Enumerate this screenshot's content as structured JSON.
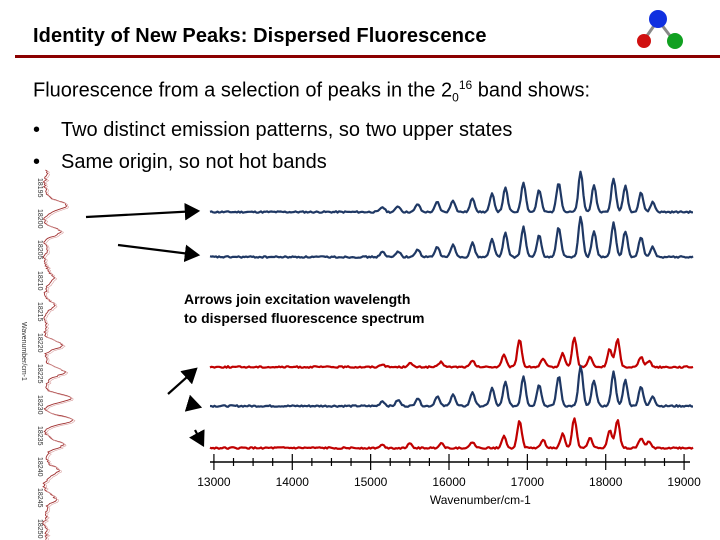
{
  "slide": {
    "title": "Identity of New Peaks: Dispersed Fluorescence",
    "intro_pre": "Fluorescence from a selection of peaks in the 2",
    "intro_sub": "0",
    "intro_sup": "16",
    "intro_post": " band shows:",
    "bullets": [
      "Two distinct emission patterns, so two upper states",
      "Same origin, so not hot bands"
    ],
    "bullet_char": "•",
    "annotation_line1": "Arrows join excitation wavelength",
    "annotation_line2": "to dispersed fluorescence spectrum"
  },
  "left_spectrum": {
    "axis_title": "Wavenumber/cm-1",
    "tick_labels": [
      "18195",
      "18200",
      "18205",
      "18210",
      "18215",
      "18220",
      "18225",
      "18230",
      "18235",
      "18240",
      "18245",
      "18250"
    ]
  },
  "chart_data": {
    "type": "line",
    "xlabel": "Wavenumber/cm-1",
    "xlim": [
      12950,
      19050
    ],
    "x_ticks": [
      13000,
      14000,
      15000,
      16000,
      17000,
      18000,
      19000
    ],
    "series": [
      {
        "pattern": "A",
        "color": "#1f3864"
      },
      {
        "pattern": "A",
        "color": "#1f3864"
      },
      {
        "pattern": "B",
        "color": "#c00000"
      },
      {
        "pattern": "A",
        "color": "#1f3864"
      },
      {
        "pattern": "B",
        "color": "#c00000"
      }
    ]
  },
  "colors": {
    "title_rule": "#8b0000",
    "blue_trace": "#1f3864",
    "red_trace": "#c00000",
    "logo_blue": "#1030e0",
    "logo_red": "#d01010",
    "logo_green": "#10a020"
  },
  "icons": {
    "logo": "molecule-logo-icon"
  }
}
